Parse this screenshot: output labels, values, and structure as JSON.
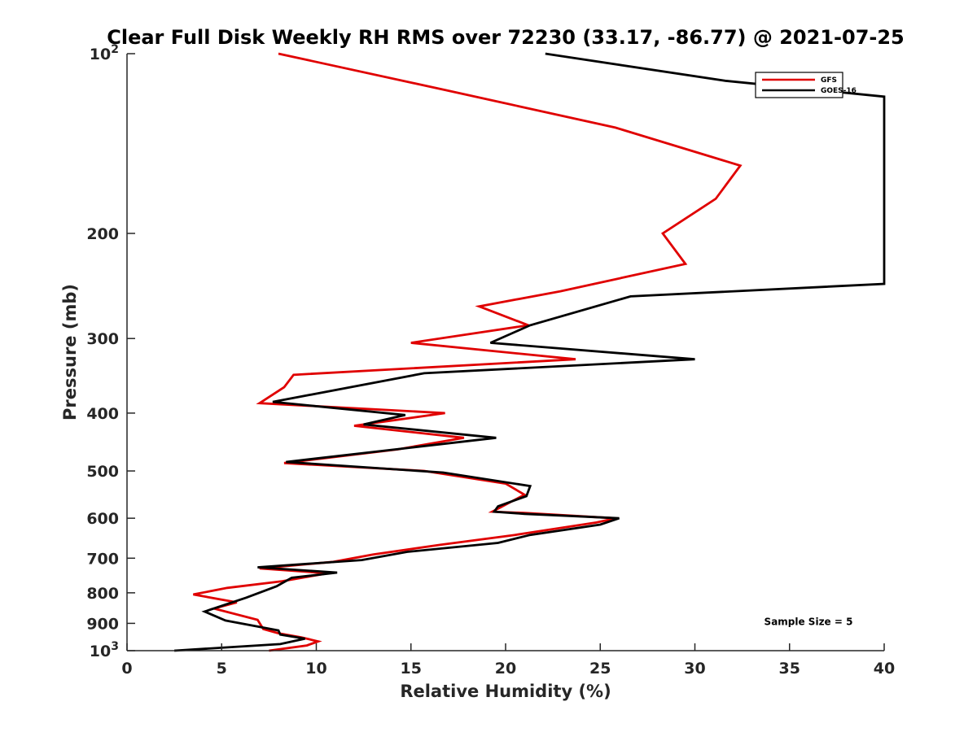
{
  "chart_data": {
    "type": "line",
    "title": "Clear Full Disk Weekly RH RMS over 72230 (33.17, -86.77) @ 2021-07-25",
    "xlabel": "Relative Humidity (%)",
    "ylabel": "Pressure (mb)",
    "xlim": [
      0,
      40
    ],
    "ylim": [
      100,
      1000
    ],
    "yscale": "log",
    "y_reversed": true,
    "grid": false,
    "legend_position": "top-right",
    "x_ticks": [
      {
        "value": 0,
        "label": "0"
      },
      {
        "value": 5,
        "label": "5"
      },
      {
        "value": 10,
        "label": "10"
      },
      {
        "value": 15,
        "label": "15"
      },
      {
        "value": 20,
        "label": "20"
      },
      {
        "value": 25,
        "label": "25"
      },
      {
        "value": 30,
        "label": "30"
      },
      {
        "value": 35,
        "label": "35"
      },
      {
        "value": 40,
        "label": "40"
      }
    ],
    "y_ticks": [
      {
        "value": 100,
        "label": "10",
        "sup": "2"
      },
      {
        "value": 200,
        "label": "200",
        "sup": ""
      },
      {
        "value": 300,
        "label": "300",
        "sup": ""
      },
      {
        "value": 400,
        "label": "400",
        "sup": ""
      },
      {
        "value": 500,
        "label": "500",
        "sup": ""
      },
      {
        "value": 600,
        "label": "600",
        "sup": ""
      },
      {
        "value": 700,
        "label": "700",
        "sup": ""
      },
      {
        "value": 800,
        "label": "800",
        "sup": ""
      },
      {
        "value": 900,
        "label": "900",
        "sup": ""
      },
      {
        "value": 1000,
        "label": "10",
        "sup": "3"
      }
    ],
    "series": [
      {
        "name": "GFS",
        "color": "#e00000",
        "points": [
          {
            "x": 8.0,
            "p": 100
          },
          {
            "x": 16.8,
            "p": 115
          },
          {
            "x": 25.8,
            "p": 133
          },
          {
            "x": 32.4,
            "p": 154
          },
          {
            "x": 31.1,
            "p": 175
          },
          {
            "x": 28.3,
            "p": 200
          },
          {
            "x": 29.5,
            "p": 225
          },
          {
            "x": 22.9,
            "p": 250
          },
          {
            "x": 18.6,
            "p": 265
          },
          {
            "x": 21.2,
            "p": 285
          },
          {
            "x": 15.0,
            "p": 305
          },
          {
            "x": 23.7,
            "p": 325
          },
          {
            "x": 8.8,
            "p": 345
          },
          {
            "x": 8.3,
            "p": 362
          },
          {
            "x": 7.0,
            "p": 385
          },
          {
            "x": 16.8,
            "p": 400
          },
          {
            "x": 12.0,
            "p": 420
          },
          {
            "x": 17.8,
            "p": 440
          },
          {
            "x": 14.3,
            "p": 460
          },
          {
            "x": 8.3,
            "p": 485
          },
          {
            "x": 15.7,
            "p": 500
          },
          {
            "x": 20.0,
            "p": 525
          },
          {
            "x": 21.0,
            "p": 548
          },
          {
            "x": 20.2,
            "p": 565
          },
          {
            "x": 19.3,
            "p": 585
          },
          {
            "x": 21.0,
            "p": 588
          },
          {
            "x": 25.8,
            "p": 600
          },
          {
            "x": 24.8,
            "p": 610
          },
          {
            "x": 20.5,
            "p": 640
          },
          {
            "x": 16.5,
            "p": 665
          },
          {
            "x": 13.0,
            "p": 690
          },
          {
            "x": 10.9,
            "p": 710
          },
          {
            "x": 7.0,
            "p": 728
          },
          {
            "x": 10.6,
            "p": 742
          },
          {
            "x": 8.2,
            "p": 765
          },
          {
            "x": 5.3,
            "p": 785
          },
          {
            "x": 3.5,
            "p": 805
          },
          {
            "x": 5.8,
            "p": 830
          },
          {
            "x": 4.6,
            "p": 850
          },
          {
            "x": 6.9,
            "p": 888
          },
          {
            "x": 7.2,
            "p": 920
          },
          {
            "x": 8.0,
            "p": 935
          },
          {
            "x": 9.2,
            "p": 950
          },
          {
            "x": 10.1,
            "p": 965
          },
          {
            "x": 9.5,
            "p": 980
          },
          {
            "x": 7.5,
            "p": 1000
          }
        ]
      },
      {
        "name": "GOES-16",
        "color": "#000000",
        "points": [
          {
            "x": 22.1,
            "p": 100
          },
          {
            "x": 31.6,
            "p": 111
          },
          {
            "x": 40.0,
            "p": 118
          },
          {
            "x": 40.0,
            "p": 243
          },
          {
            "x": 26.6,
            "p": 255
          },
          {
            "x": 21.3,
            "p": 285
          },
          {
            "x": 19.2,
            "p": 305
          },
          {
            "x": 30.0,
            "p": 325
          },
          {
            "x": 15.7,
            "p": 343
          },
          {
            "x": 7.7,
            "p": 383
          },
          {
            "x": 14.7,
            "p": 403
          },
          {
            "x": 12.5,
            "p": 418
          },
          {
            "x": 19.5,
            "p": 440
          },
          {
            "x": 8.4,
            "p": 483
          },
          {
            "x": 16.7,
            "p": 503
          },
          {
            "x": 21.3,
            "p": 530
          },
          {
            "x": 21.1,
            "p": 551
          },
          {
            "x": 19.6,
            "p": 573
          },
          {
            "x": 19.4,
            "p": 585
          },
          {
            "x": 21.0,
            "p": 590
          },
          {
            "x": 26.0,
            "p": 600
          },
          {
            "x": 25.0,
            "p": 615
          },
          {
            "x": 21.3,
            "p": 640
          },
          {
            "x": 19.6,
            "p": 660
          },
          {
            "x": 14.8,
            "p": 683
          },
          {
            "x": 12.4,
            "p": 705
          },
          {
            "x": 6.9,
            "p": 725
          },
          {
            "x": 11.1,
            "p": 740
          },
          {
            "x": 8.7,
            "p": 755
          },
          {
            "x": 7.9,
            "p": 780
          },
          {
            "x": 6.3,
            "p": 815
          },
          {
            "x": 4.1,
            "p": 860
          },
          {
            "x": 5.2,
            "p": 890
          },
          {
            "x": 6.8,
            "p": 910
          },
          {
            "x": 8.0,
            "p": 925
          },
          {
            "x": 8.1,
            "p": 940
          },
          {
            "x": 9.4,
            "p": 955
          },
          {
            "x": 8.1,
            "p": 975
          },
          {
            "x": 2.5,
            "p": 1000
          }
        ]
      }
    ],
    "annotations": [
      {
        "text": "Sample Size = 5",
        "x": 36.0,
        "p": 895
      }
    ]
  }
}
